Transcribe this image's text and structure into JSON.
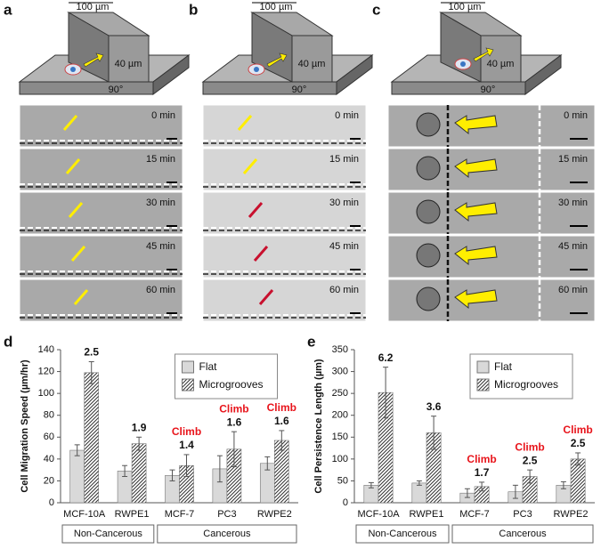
{
  "panel_labels": [
    "a",
    "b",
    "c",
    "d",
    "e"
  ],
  "diagrams": [
    {
      "width_label": "100 µm",
      "height_label": "40 µm",
      "angle_label": "90°"
    },
    {
      "width_label": "100 µm",
      "height_label": "40 µm",
      "angle_label": "90°"
    },
    {
      "width_label": "100 µm",
      "height_label": "40 µm",
      "angle_label": "90°"
    }
  ],
  "timelapses": [
    {
      "times": [
        "0 min",
        "15 min",
        "30 min",
        "45 min",
        "60 min"
      ]
    },
    {
      "times": [
        "0 min",
        "15 min",
        "30 min",
        "45 min",
        "60 min"
      ]
    },
    {
      "times": [
        "0 min",
        "15 min",
        "30 min",
        "45 min",
        "60 min"
      ]
    }
  ],
  "chart_data": [
    {
      "type": "bar",
      "y_label": "Cell Migration Speed (µm/hr)",
      "categories": [
        "MCF-10A",
        "RWPE1",
        "MCF-7",
        "PC3",
        "RWPE2"
      ],
      "group_of": [
        "Non-Cancerous",
        "Non-Cancerous",
        "Cancerous",
        "Cancerous",
        "Cancerous"
      ],
      "series": [
        {
          "name": "Flat",
          "color": "#d9d9d9",
          "hatch": false,
          "values": [
            48,
            29,
            25,
            31,
            36
          ],
          "errors": [
            5,
            5,
            5,
            12,
            6
          ]
        },
        {
          "name": "Microgrooves",
          "color": "#333333",
          "hatch": true,
          "values": [
            119,
            54,
            34,
            49,
            57
          ],
          "errors": [
            10,
            6,
            10,
            16,
            9
          ]
        }
      ],
      "ratios": [
        2.5,
        1.9,
        1.4,
        1.6,
        1.6
      ],
      "annotations": [
        null,
        null,
        "Climb",
        "Climb",
        "Climb"
      ],
      "ylim": [
        0,
        140
      ],
      "yticks": [
        0,
        20,
        40,
        60,
        80,
        100,
        120,
        140
      ],
      "grid": false,
      "legend_position": "top"
    },
    {
      "type": "bar",
      "y_label": "Cell Persistence Length (µm)",
      "categories": [
        "MCF-10A",
        "RWPE1",
        "MCF-7",
        "PC3",
        "RWPE2"
      ],
      "group_of": [
        "Non-Cancerous",
        "Non-Cancerous",
        "Cancerous",
        "Cancerous",
        "Cancerous"
      ],
      "series": [
        {
          "name": "Flat",
          "color": "#d9d9d9",
          "hatch": false,
          "values": [
            40,
            45,
            22,
            25,
            40
          ],
          "errors": [
            6,
            5,
            10,
            15,
            8
          ]
        },
        {
          "name": "Microgrooves",
          "color": "#333333",
          "hatch": true,
          "values": [
            252,
            160,
            37,
            60,
            100
          ],
          "errors": [
            58,
            38,
            10,
            15,
            14
          ]
        }
      ],
      "ratios": [
        6.2,
        3.6,
        1.7,
        2.5,
        2.5
      ],
      "annotations": [
        null,
        null,
        "Climb",
        "Climb",
        "Climb"
      ],
      "ylim": [
        0,
        350
      ],
      "yticks": [
        0,
        50,
        100,
        150,
        200,
        250,
        300,
        350
      ],
      "grid": false,
      "legend_position": "top"
    }
  ]
}
